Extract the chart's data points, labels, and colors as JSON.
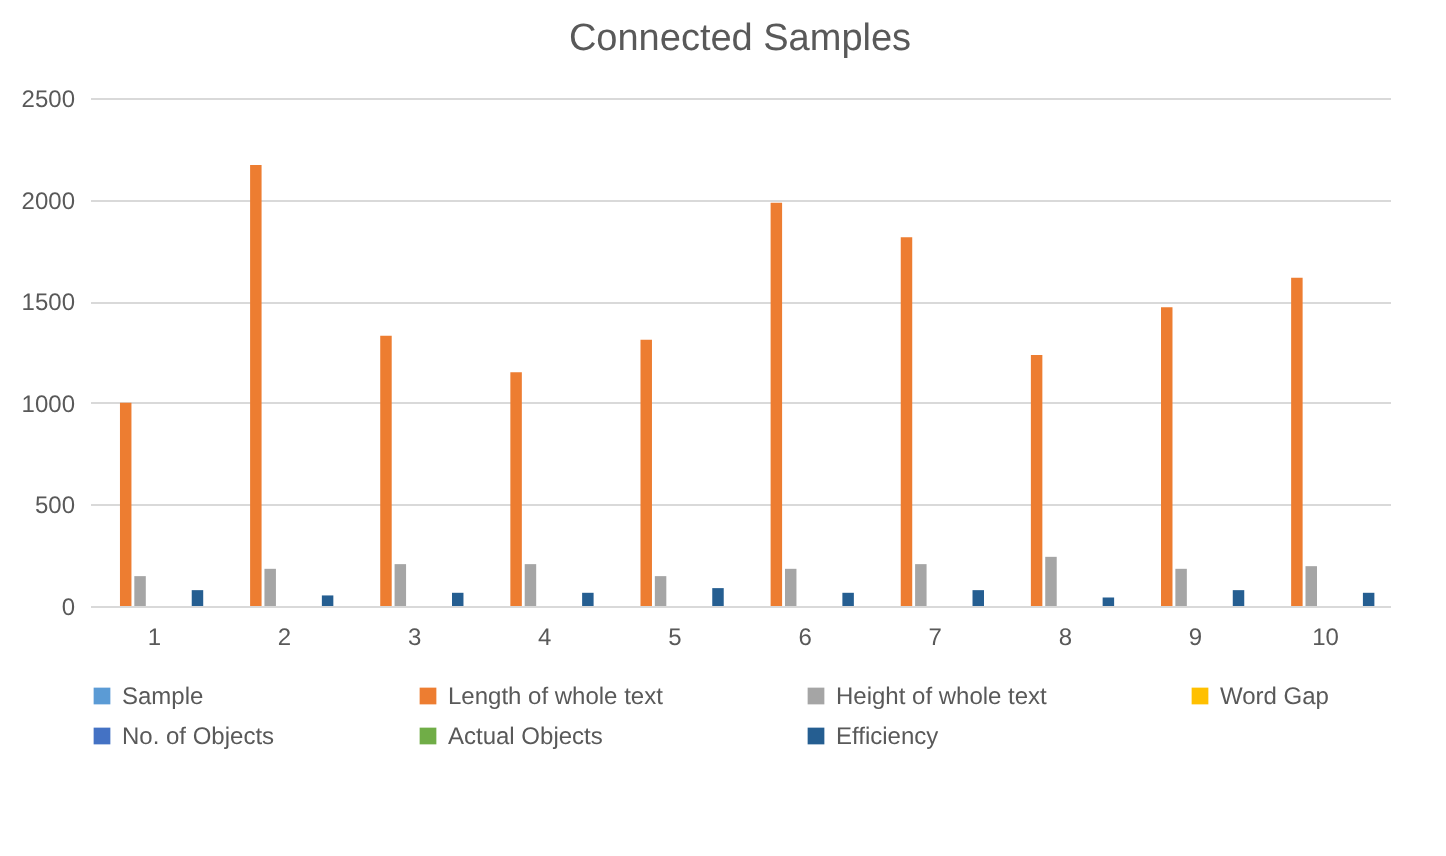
{
  "chart_data": {
    "type": "bar",
    "title": "Connected Samples",
    "categories": [
      "1",
      "2",
      "3",
      "4",
      "5",
      "6",
      "7",
      "8",
      "9",
      "10"
    ],
    "series": [
      {
        "name": "Sample",
        "color": "#5b9bd5",
        "values": [
          0,
          0,
          0,
          0,
          0,
          0,
          0,
          0,
          0,
          0
        ]
      },
      {
        "name": "Length of whole text",
        "color": "#ed7d31",
        "values": [
          1000,
          2170,
          1330,
          1150,
          1310,
          1985,
          1815,
          1235,
          1470,
          1615
        ]
      },
      {
        "name": "Height of whole text",
        "color": "#a5a5a5",
        "values": [
          147,
          183,
          206,
          206,
          147,
          183,
          206,
          242,
          183,
          196
        ]
      },
      {
        "name": "Word Gap",
        "color": "#ffc000",
        "values": [
          0,
          0,
          0,
          0,
          0,
          0,
          0,
          0,
          0,
          0
        ]
      },
      {
        "name": "No. of Objects",
        "color": "#4472c4",
        "values": [
          0,
          0,
          0,
          0,
          0,
          0,
          0,
          0,
          0,
          0
        ]
      },
      {
        "name": "Actual Objects",
        "color": "#70ad47",
        "values": [
          0,
          0,
          0,
          0,
          0,
          0,
          0,
          0,
          0,
          0
        ]
      },
      {
        "name": "Efficiency",
        "color": "#255e91",
        "values": [
          78,
          52,
          65,
          65,
          88,
          65,
          78,
          42,
          78,
          65
        ]
      }
    ],
    "ylim": [
      0,
      2500
    ],
    "yticks": [
      0,
      500,
      1000,
      1500,
      2000,
      2500
    ],
    "grid": "y",
    "legend": "bottom"
  }
}
